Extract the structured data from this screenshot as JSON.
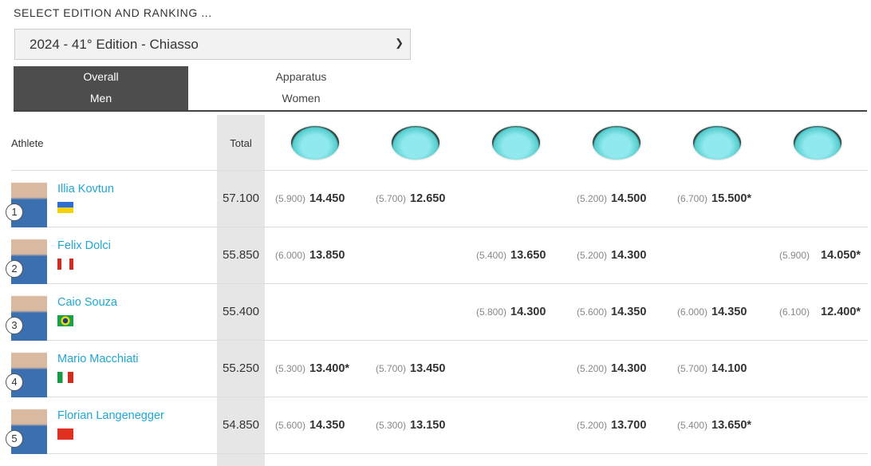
{
  "selector": {
    "label": "SELECT EDITION AND RANKING ...",
    "value": "2024 - 41° Edition - Chiasso"
  },
  "tabs": [
    {
      "line1": "Overall",
      "line2": "Men",
      "active": true
    },
    {
      "line1": "Apparatus",
      "line2": "Women",
      "active": false
    }
  ],
  "table": {
    "headers": {
      "athlete": "Athlete",
      "total": "Total",
      "apparatus_icons": [
        "floor-icon",
        "pommel-horse-icon",
        "rings-icon",
        "vault-icon",
        "parallel-bars-icon",
        "high-bar-icon"
      ]
    },
    "rows": [
      {
        "rank": "1",
        "name": "Illia Kovtun",
        "flag": "ukraine",
        "total": "57.100",
        "scores": [
          {
            "d": "(5.900)",
            "s": "14.450"
          },
          {
            "d": "(5.700)",
            "s": "12.650"
          },
          null,
          {
            "d": "(5.200)",
            "s": "14.500"
          },
          {
            "d": "(6.700)",
            "s": "15.500*"
          },
          null
        ]
      },
      {
        "rank": "2",
        "name": "Felix Dolci",
        "flag": "canada",
        "total": "55.850",
        "scores": [
          {
            "d": "(6.000)",
            "s": "13.850"
          },
          null,
          {
            "d": "(5.400)",
            "s": "13.650"
          },
          {
            "d": "(5.200)",
            "s": "14.300"
          },
          null,
          {
            "d": "(5.900)",
            "s": "14.050*"
          }
        ]
      },
      {
        "rank": "3",
        "name": "Caio Souza",
        "flag": "brazil",
        "total": "55.400",
        "scores": [
          null,
          null,
          {
            "d": "(5.800)",
            "s": "14.300"
          },
          {
            "d": "(5.600)",
            "s": "14.350"
          },
          {
            "d": "(6.000)",
            "s": "14.350"
          },
          {
            "d": "(6.100)",
            "s": "12.400*"
          }
        ]
      },
      {
        "rank": "4",
        "name": "Mario Macchiati",
        "flag": "italy",
        "total": "55.250",
        "scores": [
          {
            "d": "(5.300)",
            "s": "13.400*"
          },
          {
            "d": "(5.700)",
            "s": "13.450"
          },
          null,
          {
            "d": "(5.200)",
            "s": "14.300"
          },
          {
            "d": "(5.700)",
            "s": "14.100"
          },
          null
        ]
      },
      {
        "rank": "5",
        "name": "Florian Langenegger",
        "flag": "switzerland",
        "total": "54.850",
        "scores": [
          {
            "d": "(5.600)",
            "s": "14.350"
          },
          {
            "d": "(5.300)",
            "s": "13.150"
          },
          null,
          {
            "d": "(5.200)",
            "s": "13.700"
          },
          {
            "d": "(5.400)",
            "s": "13.650*"
          },
          null
        ]
      }
    ]
  }
}
